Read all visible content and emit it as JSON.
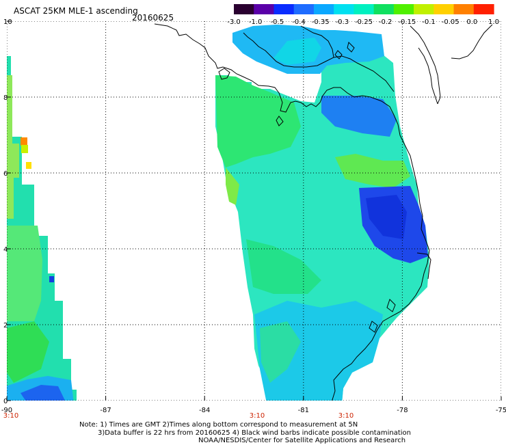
{
  "title": "ASCAT 25KM MLE-1 ascending",
  "date": "20160625",
  "colorbar": {
    "labels": [
      "-3.0",
      "-1.0",
      "-0.5",
      "-0.4",
      "-0.35",
      "-0.3",
      "-0.25",
      "-0.2",
      "-0.15",
      "-0.1",
      "-0.05",
      "0.0",
      "1.0"
    ],
    "colors": [
      "#2a0030",
      "#5a00a8",
      "#0a2cff",
      "#1e6cff",
      "#0aa8ff",
      "#00e0f0",
      "#00f0c0",
      "#10e060",
      "#50f000",
      "#c0f000",
      "#ffd000",
      "#ff8000",
      "#ff2000"
    ]
  },
  "map": {
    "lon_ticks": [
      "-90",
      "-87",
      "-84",
      "-81",
      "-78",
      "-75"
    ],
    "lat_ticks": [
      "0",
      "2",
      "4",
      "6",
      "8",
      "10"
    ],
    "time_labels": [
      "3:10",
      "3:10",
      "3:10"
    ],
    "time_color": "#cc2200"
  },
  "notes": [
    "Note: 1) Times are GMT 2)Times along bottom correspond to measurement at 5N",
    "3)Data buffer is 22 hrs from 20160625 4) Black wind barbs indicate possible contamination",
    "NOAA/NESDIS/Center for Satellite Applications and Research"
  ]
}
